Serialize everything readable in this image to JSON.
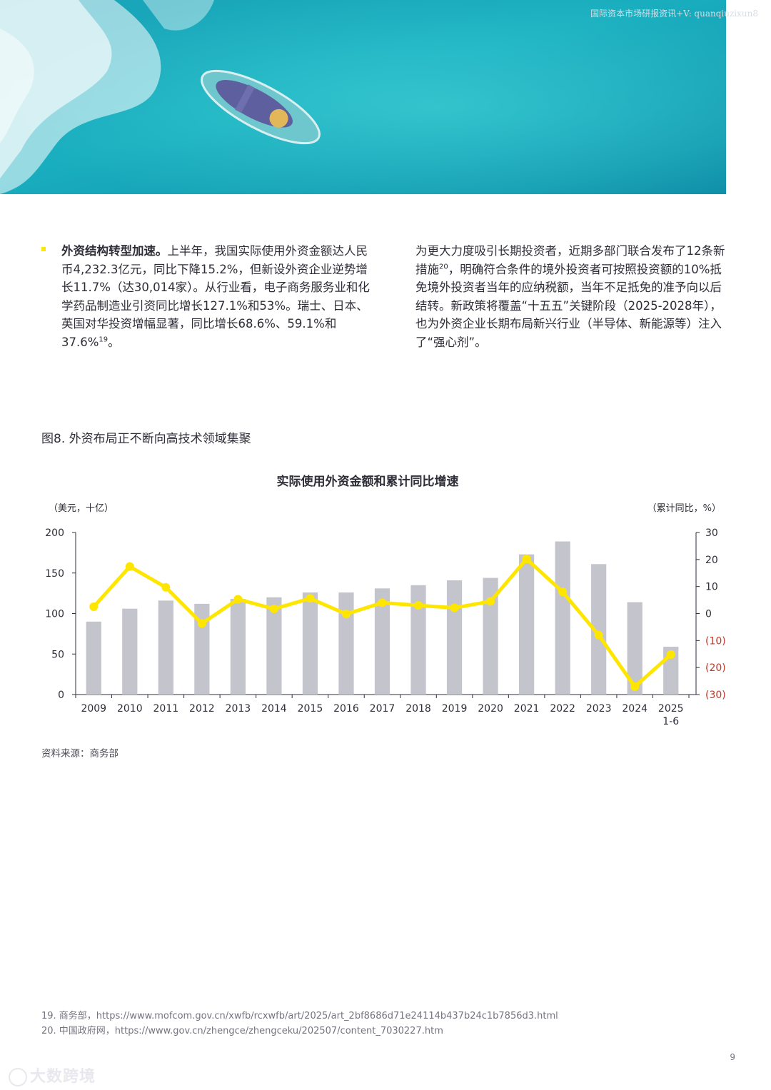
{
  "watermark_top": "国际资本市场研报资讯+V: quanqiuzixun8",
  "left_paragraph": {
    "heading": "外资结构转型加速。",
    "body": "上半年，我国实际使用外资金额达人民币4,232.3亿元，同比下降15.2%，但新设外资企业逆势增长11.7%（达30,014家）。从行业看，电子商务服务业和化学药品制造业引资同比增长127.1%和53%。瑞士、日本、英国对华投资增幅显著，同比增长68.6%、59.1%和37.6%",
    "ref": "19",
    "end": "。"
  },
  "right_paragraph": {
    "part1": "为更大力度吸引长期投资者，近期多部门联合发布了12条新措施",
    "ref": "20",
    "part2": "，明确符合条件的境外投资者可按照投资额的10%抵免境外投资者当年的应纳税额，当年不足抵免的准予向以后结转。新政策将覆盖“十五五”关键阶段（2025-2028年），也为外资企业长期布局新兴行业（半导体、新能源等）注入了“强心剂”。"
  },
  "figure_title": "图8. 外资布局正不断向高技术领域集聚",
  "chart_data": {
    "type": "bar",
    "title": "实际使用外资金额和累计同比增速",
    "ylabel": "（美元，十亿）",
    "y2label": "（累计同比，%）",
    "categories": [
      "2009",
      "2010",
      "2011",
      "2012",
      "2013",
      "2014",
      "2015",
      "2016",
      "2017",
      "2018",
      "2019",
      "2020",
      "2021",
      "2022",
      "2023",
      "2024",
      "2025"
    ],
    "category_sublabels": [
      "",
      "",
      "",
      "",
      "",
      "",
      "",
      "",
      "",
      "",
      "",
      "",
      "",
      "",
      "",
      "",
      "1-6"
    ],
    "ylim": [
      0,
      200
    ],
    "yticks": [
      0,
      50,
      100,
      150,
      200
    ],
    "y2lim": [
      -30,
      30
    ],
    "y2ticks": [
      {
        "value": 30,
        "label": "30"
      },
      {
        "value": 20,
        "label": "20"
      },
      {
        "value": 10,
        "label": "10"
      },
      {
        "value": 0,
        "label": "0"
      },
      {
        "value": -10,
        "label": "(10)"
      },
      {
        "value": -20,
        "label": "(20)"
      },
      {
        "value": -30,
        "label": "(30)"
      }
    ],
    "series": [
      {
        "kind": "bar",
        "axis": "left",
        "color": "#c4c4cd",
        "values": [
          90,
          106,
          116,
          112,
          118,
          120,
          126,
          126,
          131,
          135,
          141,
          144,
          173,
          189,
          161,
          114,
          59
        ]
      },
      {
        "kind": "line",
        "axis": "right",
        "color": "#ffe600",
        "values": [
          2.5,
          17.4,
          9.7,
          -3.7,
          5.3,
          1.7,
          5.6,
          -0.2,
          4.0,
          3.0,
          2.1,
          4.5,
          20.2,
          8.0,
          -8.0,
          -27.1,
          -15.2
        ]
      }
    ],
    "negative_label_color": "#c0392b"
  },
  "source": "资料来源：商务部",
  "footnotes": [
    "19.  商务部，https://www.mofcom.gov.cn/xwfb/rcxwfb/art/2025/art_2bf8686d71e24114b437b24c1b7856d3.html",
    "20.  中国政府网，https://www.gov.cn/zhengce/zhengceku/202507/content_7030227.htm"
  ],
  "page_number": "9",
  "logo_text": "大数跨境"
}
